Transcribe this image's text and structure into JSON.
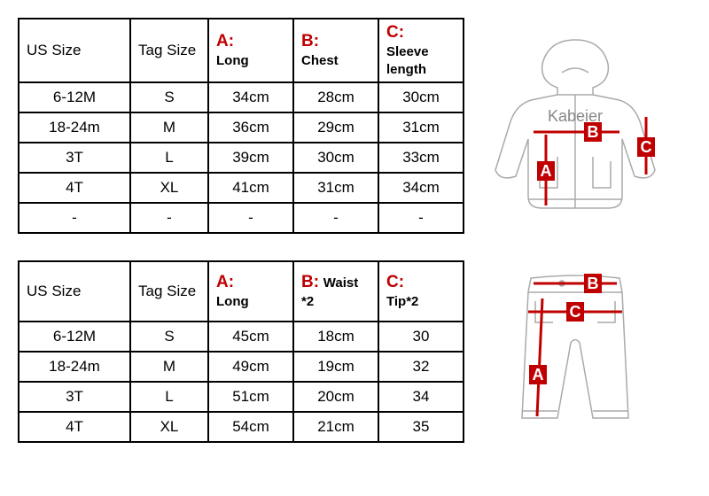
{
  "table1": {
    "headers": {
      "us": "US Size",
      "tag": "Tag Size",
      "a_letter": "A:",
      "a_sub": "Long",
      "b_letter": "B:",
      "b_sub": "Chest",
      "c_letter": "C:",
      "c_sub": "Sleeve length"
    },
    "rows": [
      {
        "us": "6-12M",
        "tag": "S",
        "a": "34cm",
        "b": "28cm",
        "c": "30cm"
      },
      {
        "us": "18-24m",
        "tag": "M",
        "a": "36cm",
        "b": "29cm",
        "c": "31cm"
      },
      {
        "us": "3T",
        "tag": "L",
        "a": "39cm",
        "b": "30cm",
        "c": "33cm"
      },
      {
        "us": "4T",
        "tag": "XL",
        "a": "41cm",
        "b": "31cm",
        "c": "34cm"
      },
      {
        "us": "-",
        "tag": "-",
        "a": "-",
        "b": "-",
        "c": "-"
      }
    ]
  },
  "table2": {
    "headers": {
      "us": "US Size",
      "tag": "Tag Size",
      "a_letter": "A:",
      "a_sub": "Long",
      "b_letter": "B:",
      "b_sub": "Waist *2",
      "c_letter": "C:",
      "c_sub": "Tip*2"
    },
    "rows": [
      {
        "us": "6-12M",
        "tag": "S",
        "a": "45cm",
        "b": "18cm",
        "c": "30"
      },
      {
        "us": "18-24m",
        "tag": "M",
        "a": "49cm",
        "b": "19cm",
        "c": "32"
      },
      {
        "us": "3T",
        "tag": "L",
        "a": "51cm",
        "b": "20cm",
        "c": "34"
      },
      {
        "us": "4T",
        "tag": "XL",
        "a": "54cm",
        "b": "21cm",
        "c": "35"
      }
    ]
  },
  "jacket": {
    "brand": "Kabeier",
    "labels": {
      "a": "A",
      "b": "B",
      "c": "C"
    }
  },
  "pants": {
    "labels": {
      "a": "A",
      "b": "B",
      "c": "C"
    }
  },
  "colors": {
    "accent": "#c00000",
    "border": "#000000",
    "sketch": "#888888"
  }
}
